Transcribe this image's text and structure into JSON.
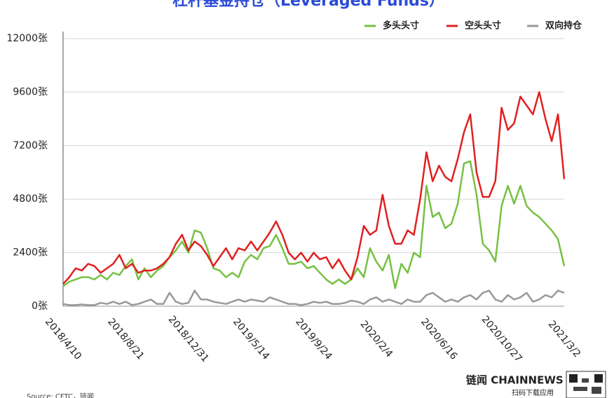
{
  "chart_data": {
    "type": "line",
    "title": "杠杆基金持仓（Leveraged Funds）",
    "source": "Source: CFTC，链闻",
    "logo": "链闻 CHAINNEWS",
    "logo_sub": "扫码下载应用",
    "categories": [
      "2018/4/10",
      null,
      null,
      null,
      null,
      null,
      null,
      null,
      null,
      null,
      "2018/8/21",
      null,
      null,
      null,
      null,
      null,
      null,
      null,
      null,
      null,
      "2018/12/31",
      null,
      null,
      null,
      null,
      null,
      null,
      null,
      null,
      null,
      "2019/5/14",
      null,
      null,
      null,
      null,
      null,
      null,
      null,
      null,
      null,
      "2019/9/24",
      null,
      null,
      null,
      null,
      null,
      null,
      null,
      null,
      null,
      "2020/2/4",
      null,
      null,
      null,
      null,
      null,
      null,
      null,
      null,
      null,
      "2020/6/16",
      null,
      null,
      null,
      null,
      null,
      null,
      null,
      null,
      null,
      "2020/10/27",
      null,
      null,
      null,
      null,
      null,
      null,
      null,
      null,
      null,
      "2021/3/2"
    ],
    "series": [
      {
        "name": "多头头寸",
        "color": "#77c043",
        "values": [
          900,
          1100,
          1200,
          1300,
          1300,
          1200,
          1400,
          1200,
          1500,
          1400,
          1800,
          2100,
          1200,
          1700,
          1300,
          1600,
          1800,
          2200,
          2500,
          2900,
          2400,
          3400,
          3300,
          2600,
          1700,
          1600,
          1300,
          1500,
          1300,
          2000,
          2300,
          2100,
          2600,
          2700,
          3200,
          2600,
          1900,
          1900,
          2000,
          1700,
          1800,
          1500,
          1200,
          1000,
          1200,
          1000,
          1200,
          1700,
          1300,
          2600,
          2000,
          1600,
          2300,
          800,
          1900,
          1500,
          2400,
          2200,
          5400,
          4000,
          4200,
          3500,
          3700,
          4600,
          6400,
          6500,
          5000,
          2800,
          2500,
          2000,
          4500,
          5400,
          4600,
          5400,
          4500,
          4200,
          4000,
          3700,
          3400,
          3000,
          1800
        ]
      },
      {
        "name": "空头头寸",
        "color": "#e0201f",
        "values": [
          1000,
          1300,
          1700,
          1600,
          1900,
          1800,
          1500,
          1700,
          1900,
          2300,
          1700,
          1900,
          1500,
          1600,
          1600,
          1700,
          1900,
          2200,
          2800,
          3200,
          2500,
          2900,
          2700,
          2300,
          1800,
          2200,
          2600,
          2100,
          2600,
          2500,
          2900,
          2500,
          2900,
          3300,
          3800,
          3200,
          2400,
          2100,
          2400,
          2000,
          2400,
          2100,
          2200,
          1700,
          2100,
          1600,
          1200,
          2200,
          3600,
          3200,
          3400,
          5000,
          3600,
          2800,
          2800,
          3400,
          3200,
          4800,
          6900,
          5600,
          6300,
          5800,
          5600,
          6600,
          7800,
          8600,
          6000,
          4900,
          4900,
          5600,
          8900,
          7900,
          8200,
          9400,
          9000,
          8600,
          9600,
          8400,
          7400,
          8600,
          5700
        ]
      },
      {
        "name": "双向持仓",
        "color": "#999999",
        "values": [
          100,
          50,
          50,
          80,
          50,
          50,
          150,
          100,
          200,
          100,
          200,
          50,
          100,
          200,
          300,
          100,
          100,
          600,
          200,
          100,
          150,
          700,
          300,
          300,
          200,
          150,
          100,
          200,
          300,
          200,
          300,
          250,
          200,
          400,
          300,
          200,
          100,
          100,
          50,
          100,
          200,
          150,
          200,
          100,
          100,
          150,
          250,
          200,
          100,
          300,
          400,
          200,
          300,
          200,
          100,
          300,
          200,
          200,
          500,
          600,
          400,
          200,
          300,
          200,
          400,
          500,
          300,
          600,
          700,
          300,
          200,
          500,
          300,
          400,
          600,
          200,
          300,
          500,
          400,
          700,
          600
        ]
      }
    ],
    "ylim": [
      0,
      12000
    ],
    "yticks": [
      {
        "value": 0,
        "label": "0张"
      },
      {
        "value": 2400,
        "label": "2400张"
      },
      {
        "value": 4800,
        "label": "4800张"
      },
      {
        "value": 7200,
        "label": "7200张"
      },
      {
        "value": 9600,
        "label": "9600张"
      },
      {
        "value": 12000,
        "label": "12000张"
      }
    ],
    "grid": true
  }
}
